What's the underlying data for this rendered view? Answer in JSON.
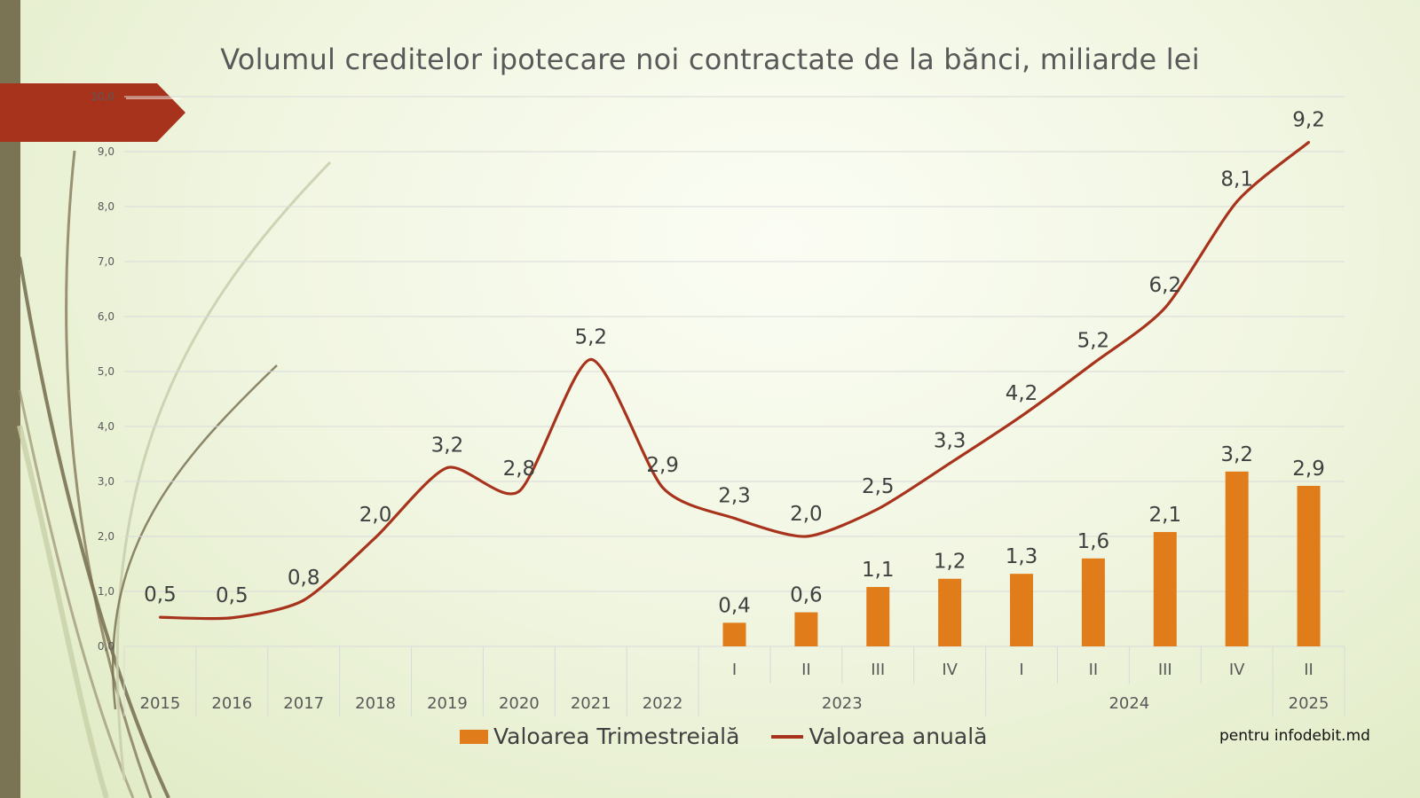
{
  "chart_data": {
    "type": "bar+line",
    "title": "Volumul creditelor ipotecare noi contractate de la bănci, miliarde lei",
    "ylim": [
      0,
      10
    ],
    "yticks": [
      "0,0",
      "1,0",
      "2,0",
      "3,0",
      "4,0",
      "5,0",
      "6,0",
      "7,0",
      "8,0",
      "9,0",
      "10,0"
    ],
    "grid": true,
    "legend_position": "bottom",
    "categories": [
      {
        "label": "2015",
        "group": ""
      },
      {
        "label": "2016",
        "group": ""
      },
      {
        "label": "2017",
        "group": ""
      },
      {
        "label": "2018",
        "group": ""
      },
      {
        "label": "2019",
        "group": ""
      },
      {
        "label": "2020",
        "group": ""
      },
      {
        "label": "2021",
        "group": ""
      },
      {
        "label": "2022",
        "group": ""
      },
      {
        "label": "I",
        "group": "2023"
      },
      {
        "label": "II",
        "group": "2023"
      },
      {
        "label": "III",
        "group": "2023"
      },
      {
        "label": "IV",
        "group": "2023"
      },
      {
        "label": "I",
        "group": "2024"
      },
      {
        "label": "II",
        "group": "2024"
      },
      {
        "label": "III",
        "group": "2024"
      },
      {
        "label": "IV",
        "group": "2024"
      },
      {
        "label": "II",
        "group": "2025"
      }
    ],
    "groups": [
      {
        "label": "2023",
        "from": 8,
        "to": 11
      },
      {
        "label": "2024",
        "from": 12,
        "to": 15
      },
      {
        "label": "2025",
        "from": 16,
        "to": 16
      }
    ],
    "series": [
      {
        "name": "Valoarea Trimestreială",
        "kind": "bar",
        "color": "#e07d1a",
        "values": [
          null,
          null,
          null,
          null,
          null,
          null,
          null,
          null,
          0.43,
          0.62,
          1.08,
          1.23,
          1.32,
          1.6,
          2.08,
          3.18,
          2.92
        ],
        "labels": [
          "",
          "",
          "",
          "",
          "",
          "",
          "",
          "",
          "0,4",
          "0,6",
          "1,1",
          "1,2",
          "1,3",
          "1,6",
          "2,1",
          "3,2",
          "2,9"
        ]
      },
      {
        "name": "Valoarea anuală",
        "kind": "line",
        "color": "#a8331c",
        "values": [
          0.53,
          0.52,
          0.84,
          1.98,
          3.25,
          2.82,
          5.22,
          2.89,
          2.33,
          2.0,
          2.5,
          3.33,
          4.19,
          5.15,
          6.16,
          8.09,
          9.17
        ],
        "labels": [
          "0,5",
          "0,5",
          "0,8",
          "2,0",
          "3,2",
          "2,8",
          "5,2",
          "2,9",
          "2,3",
          "2,0",
          "2,5",
          "3,3",
          "4,2",
          "5,2",
          "6,2",
          "8,1",
          "9,2"
        ]
      }
    ]
  },
  "credit": "pentru infodebit.md",
  "colors": {
    "left_band": "#7a7354",
    "arrow": "#a8331c",
    "grid": "#d9d9d9"
  }
}
